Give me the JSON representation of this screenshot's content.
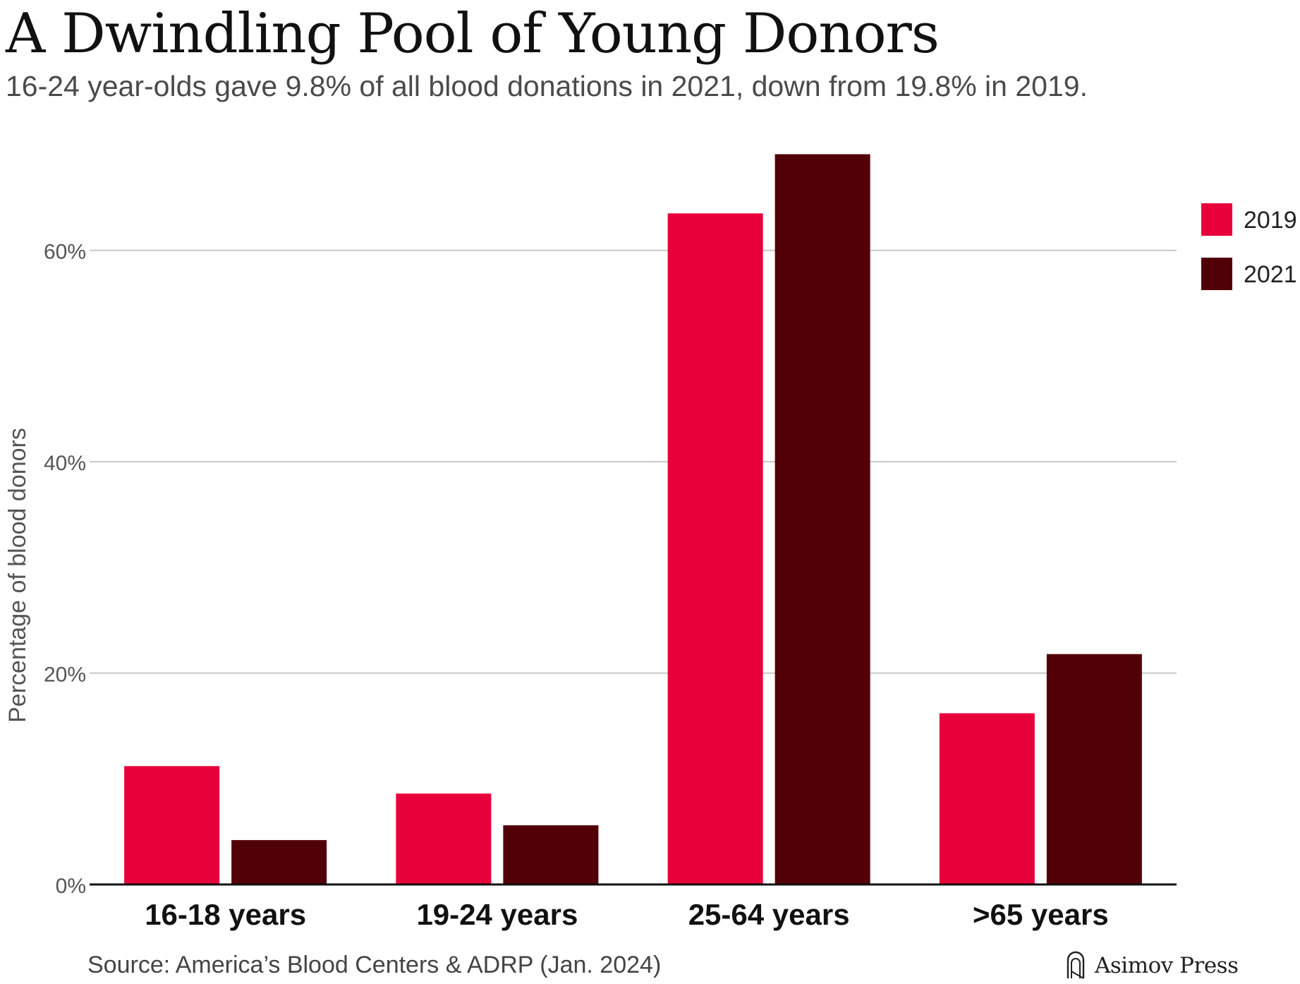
{
  "header": {
    "title": "A Dwindling Pool of Young Donors",
    "subtitle": "16-24 year-olds gave 9.8% of all blood donations in 2021, down from 19.8% in 2019."
  },
  "footer": {
    "source": "Source: America’s Blood Centers & ADRP (Jan. 2024)",
    "brand": "Asimov Press",
    "brand_icon": "asimov-press-logo-icon"
  },
  "chart_data": {
    "type": "bar",
    "categories": [
      "16-18 years",
      "19-24 years",
      "25-64 years",
      ">65 years"
    ],
    "series": [
      {
        "name": "2019",
        "color": "#E8003A",
        "values": [
          11.2,
          8.6,
          63.5,
          16.2
        ]
      },
      {
        "name": "2021",
        "color": "#520007",
        "values": [
          4.2,
          5.6,
          69.1,
          21.8
        ]
      }
    ],
    "title": "A Dwindling Pool of Young Donors",
    "xlabel": "",
    "ylabel": "Percentage of blood donors",
    "ylim": [
      0,
      70
    ],
    "yticks": [
      0,
      20,
      40,
      60
    ],
    "ytick_labels": [
      "0%",
      "20%",
      "40%",
      "60%"
    ],
    "grid": "horizontal",
    "legend": "top-right"
  }
}
